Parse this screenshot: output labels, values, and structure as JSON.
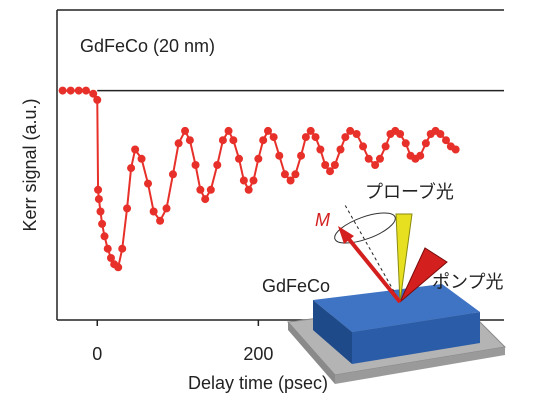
{
  "chart_data": {
    "type": "line",
    "title": "GdFeCo (20 nm)",
    "x_label": "Delay time (psec)",
    "y_label": "Kerr signal (a.u.)",
    "x": [
      -43,
      -33,
      -23,
      -14,
      -5,
      0,
      1,
      2,
      4,
      6,
      9,
      13,
      17,
      21,
      26,
      31,
      37,
      42,
      47,
      55,
      63,
      70,
      78,
      86,
      94,
      101,
      109,
      115,
      122,
      128,
      134,
      141,
      149,
      156,
      163,
      169,
      176,
      182,
      188,
      194,
      200,
      206,
      212,
      219,
      226,
      233,
      240,
      246,
      253,
      259,
      265,
      271,
      277,
      283,
      289,
      295,
      302,
      308,
      314,
      322,
      330,
      337,
      345,
      351,
      358,
      364,
      370,
      376,
      383,
      389,
      395,
      401,
      408,
      414,
      420,
      426,
      433,
      439,
      445
    ],
    "series": [
      {
        "name": "GdFeCo",
        "color": "#e8302a",
        "values": [
          0.74,
          0.74,
          0.74,
          0.74,
          0.73,
          0.71,
          0.42,
          0.39,
          0.35,
          0.31,
          0.27,
          0.23,
          0.2,
          0.18,
          0.17,
          0.23,
          0.36,
          0.49,
          0.55,
          0.52,
          0.44,
          0.35,
          0.32,
          0.36,
          0.47,
          0.57,
          0.61,
          0.58,
          0.5,
          0.42,
          0.39,
          0.42,
          0.5,
          0.58,
          0.61,
          0.58,
          0.52,
          0.45,
          0.42,
          0.45,
          0.52,
          0.58,
          0.61,
          0.59,
          0.53,
          0.47,
          0.45,
          0.47,
          0.53,
          0.59,
          0.61,
          0.59,
          0.55,
          0.5,
          0.48,
          0.5,
          0.55,
          0.59,
          0.61,
          0.6,
          0.56,
          0.52,
          0.5,
          0.52,
          0.56,
          0.6,
          0.61,
          0.6,
          0.57,
          0.53,
          0.52,
          0.53,
          0.57,
          0.6,
          0.61,
          0.6,
          0.58,
          0.56,
          0.55
        ]
      }
    ],
    "reference_line": 0.74,
    "xlim": [
      -50,
      505
    ],
    "xticks": [
      0,
      200
    ],
    "ylim": [
      0,
      1
    ],
    "inset": {
      "sample": "GdFeCo",
      "probe": "プローブ光",
      "pump": "ポンプ光",
      "magnetization": "M"
    }
  }
}
